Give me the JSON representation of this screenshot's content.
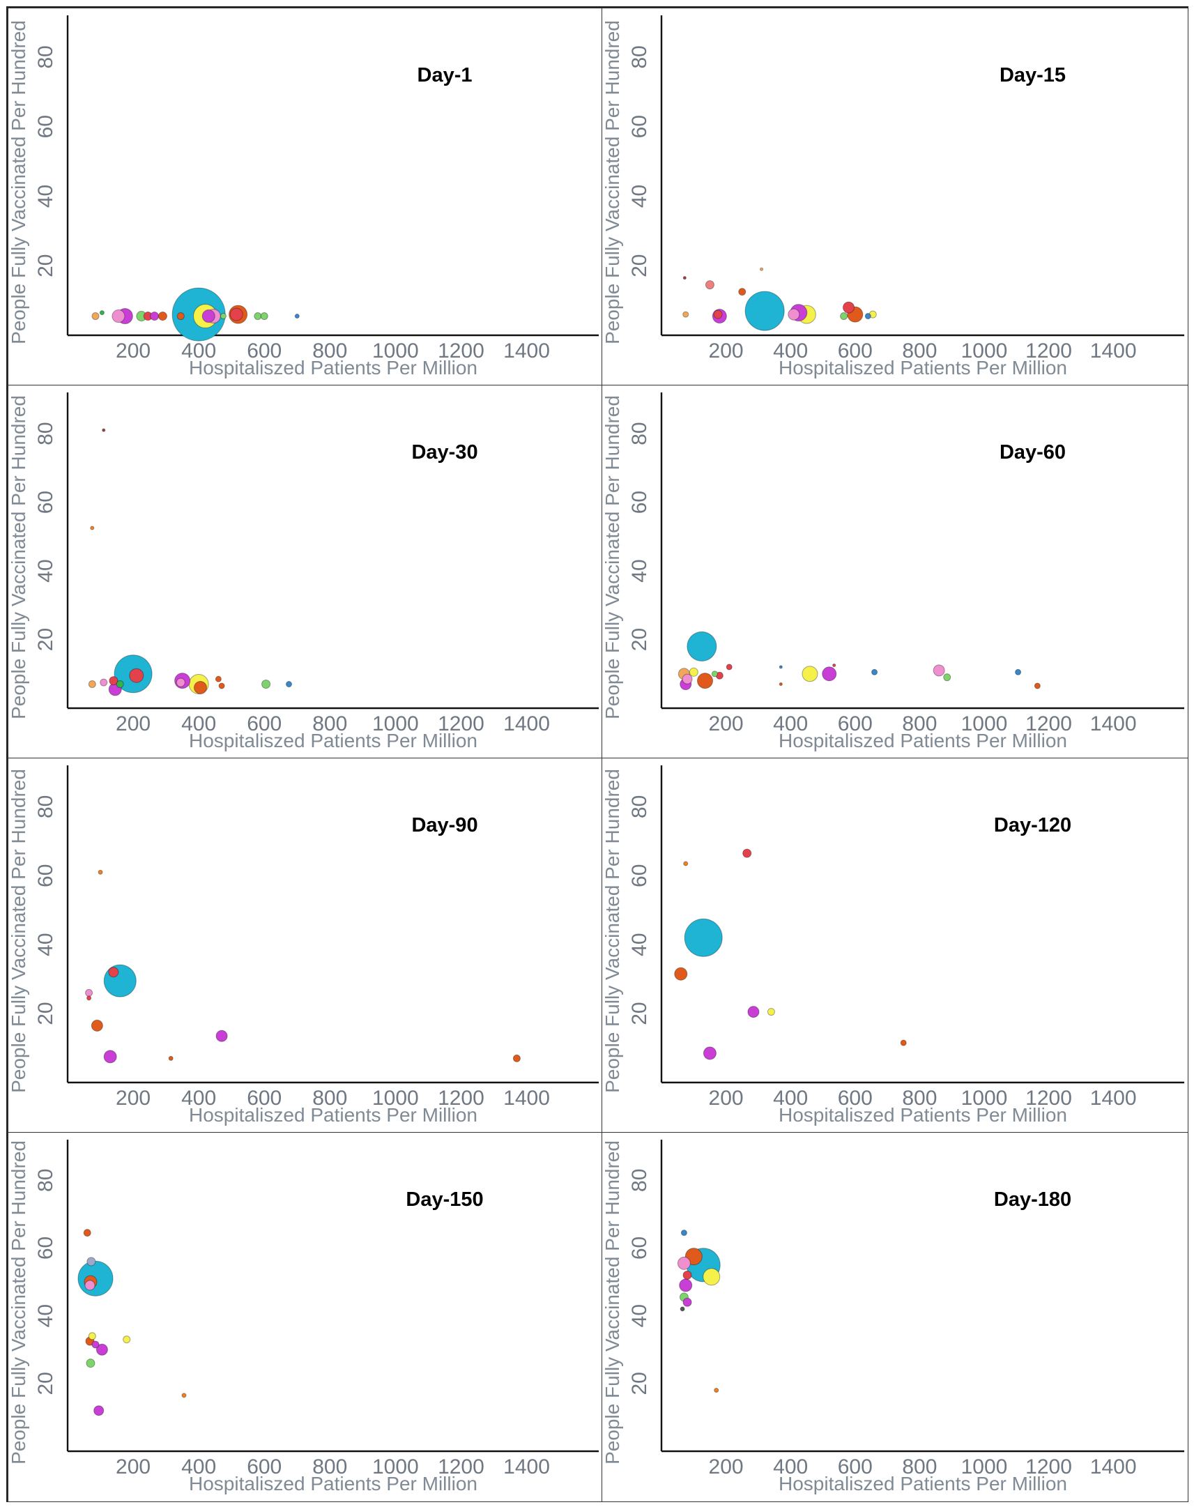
{
  "chart_data": [
    {
      "type": "scatter",
      "title": "Day-1",
      "xlabel": "Hospitaliszed Patients Per Million",
      "ylabel": "People Fully Vaccinated Per Hundred",
      "xticks": [
        "200",
        "400",
        "600",
        "800",
        "1000",
        "1200",
        "1400"
      ],
      "yticks": [
        "20",
        "40",
        "60",
        "80"
      ],
      "xlim": [
        0,
        1620
      ],
      "ylim": [
        0,
        92
      ],
      "points": [
        {
          "x": 85,
          "y": 5.5,
          "r": 5,
          "color": "#f2a65a"
        },
        {
          "x": 105,
          "y": 6.5,
          "r": 3,
          "color": "#32b44a"
        },
        {
          "x": 155,
          "y": 5.5,
          "r": 9,
          "color": "#ef8fd0"
        },
        {
          "x": 175,
          "y": 5.5,
          "r": 11,
          "color": "#c93fd6"
        },
        {
          "x": 225,
          "y": 5.5,
          "r": 7,
          "color": "#7ed36b"
        },
        {
          "x": 245,
          "y": 5.5,
          "r": 6,
          "color": "#e3424a"
        },
        {
          "x": 265,
          "y": 5.5,
          "r": 6,
          "color": "#c93fd6"
        },
        {
          "x": 290,
          "y": 5.5,
          "r": 6,
          "color": "#e05a1c"
        },
        {
          "x": 400,
          "y": 6,
          "r": 38,
          "color": "#1fb3d4"
        },
        {
          "x": 345,
          "y": 5.5,
          "r": 5,
          "color": "#e05a1c"
        },
        {
          "x": 445,
          "y": 5.5,
          "r": 10,
          "color": "#ef8fd0"
        },
        {
          "x": 420,
          "y": 5.5,
          "r": 17,
          "color": "#f5f04a"
        },
        {
          "x": 430,
          "y": 5.5,
          "r": 9,
          "color": "#c93fd6"
        },
        {
          "x": 475,
          "y": 5.5,
          "r": 4,
          "color": "#7ed36b"
        },
        {
          "x": 520,
          "y": 6,
          "r": 13,
          "color": "#e05a1c"
        },
        {
          "x": 515,
          "y": 6,
          "r": 9,
          "color": "#e3424a"
        },
        {
          "x": 580,
          "y": 5.5,
          "r": 5,
          "color": "#7ed36b"
        },
        {
          "x": 600,
          "y": 5.5,
          "r": 5,
          "color": "#7ed36b"
        },
        {
          "x": 700,
          "y": 5.5,
          "r": 3,
          "color": "#3a86c8"
        }
      ]
    },
    {
      "type": "scatter",
      "title": "Day-15",
      "xlabel": "Hospitaliszed Patients Per Million",
      "ylabel": "People Fully Vaccinated Per Hundred",
      "xticks": [
        "200",
        "400",
        "600",
        "800",
        "1000",
        "1200",
        "1400"
      ],
      "yticks": [
        "20",
        "40",
        "60",
        "80"
      ],
      "xlim": [
        0,
        1620
      ],
      "ylim": [
        0,
        92
      ],
      "points": [
        {
          "x": 72,
          "y": 16.5,
          "r": 2,
          "color": "#a04040"
        },
        {
          "x": 75,
          "y": 6,
          "r": 4,
          "color": "#f2a65a"
        },
        {
          "x": 150,
          "y": 14.5,
          "r": 6,
          "color": "#ef7f7f"
        },
        {
          "x": 175,
          "y": 6,
          "r": 6,
          "color": "#e3424a"
        },
        {
          "x": 180,
          "y": 5.5,
          "r": 10,
          "color": "#c93fd6"
        },
        {
          "x": 250,
          "y": 12.5,
          "r": 5,
          "color": "#e05a1c"
        },
        {
          "x": 310,
          "y": 19,
          "r": 2,
          "color": "#f2a65a"
        },
        {
          "x": 320,
          "y": 7,
          "r": 28,
          "color": "#1fb3d4"
        },
        {
          "x": 425,
          "y": 6.5,
          "r": 12,
          "color": "#c93fd6"
        },
        {
          "x": 450,
          "y": 6,
          "r": 13,
          "color": "#f5f04a"
        },
        {
          "x": 410,
          "y": 6,
          "r": 8,
          "color": "#ef8fd0"
        },
        {
          "x": 580,
          "y": 8,
          "r": 8,
          "color": "#e3424a"
        },
        {
          "x": 600,
          "y": 6,
          "r": 11,
          "color": "#e05a1c"
        },
        {
          "x": 565,
          "y": 5.5,
          "r": 5,
          "color": "#7ed36b"
        },
        {
          "x": 655,
          "y": 6,
          "r": 5,
          "color": "#f5f04a"
        },
        {
          "x": 640,
          "y": 5.5,
          "r": 4,
          "color": "#3a86c8"
        }
      ]
    },
    {
      "type": "scatter",
      "title": "Day-30",
      "xlabel": "Hospitaliszed Patients Per Million",
      "ylabel": "People Fully Vaccinated Per Hundred",
      "xticks": [
        "200",
        "400",
        "600",
        "800",
        "1000",
        "1200",
        "1400"
      ],
      "yticks": [
        "20",
        "40",
        "60",
        "80"
      ],
      "xlim": [
        0,
        1620
      ],
      "ylim": [
        0,
        92
      ],
      "points": [
        {
          "x": 110,
          "y": 81,
          "r": 2,
          "color": "#a04040"
        },
        {
          "x": 75,
          "y": 52.5,
          "r": 2.5,
          "color": "#f08020"
        },
        {
          "x": 75,
          "y": 7,
          "r": 5,
          "color": "#f2a65a"
        },
        {
          "x": 110,
          "y": 7.5,
          "r": 5,
          "color": "#ef8fd0"
        },
        {
          "x": 140,
          "y": 8,
          "r": 6,
          "color": "#e3424a"
        },
        {
          "x": 160,
          "y": 7,
          "r": 5,
          "color": "#32b44a"
        },
        {
          "x": 145,
          "y": 5.5,
          "r": 9,
          "color": "#c93fd6"
        },
        {
          "x": 200,
          "y": 10,
          "r": 27,
          "color": "#1fb3d4"
        },
        {
          "x": 210,
          "y": 9.5,
          "r": 10,
          "color": "#e3424a"
        },
        {
          "x": 350,
          "y": 8,
          "r": 11,
          "color": "#c93fd6"
        },
        {
          "x": 400,
          "y": 7,
          "r": 14,
          "color": "#f5f04a"
        },
        {
          "x": 345,
          "y": 7.5,
          "r": 6,
          "color": "#ef8fd0"
        },
        {
          "x": 405,
          "y": 6,
          "r": 9,
          "color": "#e05a1c"
        },
        {
          "x": 460,
          "y": 8.5,
          "r": 4,
          "color": "#e05a1c"
        },
        {
          "x": 470,
          "y": 6.5,
          "r": 4,
          "color": "#e05a1c"
        },
        {
          "x": 605,
          "y": 7,
          "r": 6,
          "color": "#7ed36b"
        },
        {
          "x": 675,
          "y": 7,
          "r": 4,
          "color": "#3a86c8"
        }
      ]
    },
    {
      "type": "scatter",
      "title": "Day-60",
      "xlabel": "Hospitaliszed Patients Per Million",
      "ylabel": "People Fully Vaccinated Per Hundred",
      "xticks": [
        "200",
        "400",
        "600",
        "800",
        "1000",
        "1200",
        "1400"
      ],
      "yticks": [
        "20",
        "40",
        "60",
        "80"
      ],
      "xlim": [
        0,
        1620
      ],
      "ylim": [
        0,
        92
      ],
      "points": [
        {
          "x": 125,
          "y": 18,
          "r": 21,
          "color": "#1fb3d4"
        },
        {
          "x": 70,
          "y": 10,
          "r": 8,
          "color": "#f2a65a"
        },
        {
          "x": 80,
          "y": 8.5,
          "r": 7,
          "color": "#ef8fd0"
        },
        {
          "x": 100,
          "y": 10.5,
          "r": 6,
          "color": "#f5f04a"
        },
        {
          "x": 75,
          "y": 7,
          "r": 8,
          "color": "#c93fd6"
        },
        {
          "x": 135,
          "y": 8,
          "r": 11,
          "color": "#e05a1c"
        },
        {
          "x": 180,
          "y": 9.5,
          "r": 5,
          "color": "#e3424a"
        },
        {
          "x": 210,
          "y": 12,
          "r": 4,
          "color": "#e3424a"
        },
        {
          "x": 165,
          "y": 10,
          "r": 4,
          "color": "#7ed36b"
        },
        {
          "x": 370,
          "y": 12,
          "r": 2,
          "color": "#3a86c8"
        },
        {
          "x": 370,
          "y": 7,
          "r": 2,
          "color": "#e05a1c"
        },
        {
          "x": 460,
          "y": 10,
          "r": 11,
          "color": "#f5f04a"
        },
        {
          "x": 520,
          "y": 10,
          "r": 10,
          "color": "#c93fd6"
        },
        {
          "x": 535,
          "y": 12.5,
          "r": 2,
          "color": "#e3424a"
        },
        {
          "x": 660,
          "y": 10.5,
          "r": 4,
          "color": "#3a86c8"
        },
        {
          "x": 860,
          "y": 11,
          "r": 8,
          "color": "#ef8fd0"
        },
        {
          "x": 885,
          "y": 9,
          "r": 5,
          "color": "#7ed36b"
        },
        {
          "x": 1105,
          "y": 10.5,
          "r": 4,
          "color": "#3a86c8"
        },
        {
          "x": 1165,
          "y": 6.5,
          "r": 4,
          "color": "#e05a1c"
        }
      ]
    },
    {
      "type": "scatter",
      "title": "Day-90",
      "xlabel": "Hospitaliszed Patients Per Million",
      "ylabel": "People Fully Vaccinated Per Hundred",
      "xticks": [
        "200",
        "400",
        "600",
        "800",
        "1000",
        "1200",
        "1400"
      ],
      "yticks": [
        "20",
        "40",
        "60",
        "80"
      ],
      "xlim": [
        0,
        1620
      ],
      "ylim": [
        0,
        92
      ],
      "points": [
        {
          "x": 100,
          "y": 61,
          "r": 3,
          "color": "#f08020"
        },
        {
          "x": 140,
          "y": 32,
          "r": 7,
          "color": "#e3424a"
        },
        {
          "x": 160,
          "y": 29.5,
          "r": 23,
          "color": "#1fb3d4"
        },
        {
          "x": 65,
          "y": 26,
          "r": 5,
          "color": "#ef8fd0"
        },
        {
          "x": 65,
          "y": 24.5,
          "r": 3,
          "color": "#e3424a"
        },
        {
          "x": 90,
          "y": 16.5,
          "r": 8,
          "color": "#e05a1c"
        },
        {
          "x": 130,
          "y": 7.5,
          "r": 9,
          "color": "#c93fd6"
        },
        {
          "x": 315,
          "y": 7,
          "r": 3,
          "color": "#e05a1c"
        },
        {
          "x": 470,
          "y": 13.5,
          "r": 8,
          "color": "#c93fd6"
        },
        {
          "x": 1370,
          "y": 7,
          "r": 5,
          "color": "#e05a1c"
        }
      ]
    },
    {
      "type": "scatter",
      "title": "Day-120",
      "xlabel": "Hospitaliszed Patients Per Million",
      "ylabel": "People Fully Vaccinated Per Hundred",
      "xticks": [
        "200",
        "400",
        "600",
        "800",
        "1000",
        "1200",
        "1400"
      ],
      "yticks": [
        "20",
        "40",
        "60",
        "80"
      ],
      "xlim": [
        0,
        1620
      ],
      "ylim": [
        0,
        92
      ],
      "points": [
        {
          "x": 75,
          "y": 63.5,
          "r": 3,
          "color": "#f08020"
        },
        {
          "x": 265,
          "y": 66.5,
          "r": 6,
          "color": "#e3424a"
        },
        {
          "x": 130,
          "y": 42,
          "r": 27,
          "color": "#1fb3d4"
        },
        {
          "x": 60,
          "y": 31.5,
          "r": 9,
          "color": "#e05a1c"
        },
        {
          "x": 285,
          "y": 20.5,
          "r": 8,
          "color": "#c93fd6"
        },
        {
          "x": 340,
          "y": 20.5,
          "r": 5,
          "color": "#f5f04a"
        },
        {
          "x": 150,
          "y": 8.5,
          "r": 9,
          "color": "#c93fd6"
        },
        {
          "x": 750,
          "y": 11.5,
          "r": 4,
          "color": "#e05a1c"
        }
      ]
    },
    {
      "type": "scatter",
      "title": "Day-150",
      "xlabel": "Hospitaliszed Patients Per Million",
      "ylabel": "People Fully Vaccinated Per Hundred",
      "xticks": [
        "200",
        "400",
        "600",
        "800",
        "1000",
        "1200",
        "1400"
      ],
      "yticks": [
        "20",
        "40",
        "60",
        "80"
      ],
      "xlim": [
        0,
        1620
      ],
      "ylim": [
        0,
        92
      ],
      "points": [
        {
          "x": 60,
          "y": 64.5,
          "r": 5,
          "color": "#e05a1c"
        },
        {
          "x": 72,
          "y": 56,
          "r": 6,
          "color": "#9fa8c8"
        },
        {
          "x": 85,
          "y": 51,
          "r": 25,
          "color": "#1fb3d4"
        },
        {
          "x": 70,
          "y": 50,
          "r": 9,
          "color": "#e05a1c"
        },
        {
          "x": 68,
          "y": 49,
          "r": 7,
          "color": "#ef8fd0"
        },
        {
          "x": 75,
          "y": 34,
          "r": 5,
          "color": "#f5f04a"
        },
        {
          "x": 68,
          "y": 32.5,
          "r": 6,
          "color": "#e05a1c"
        },
        {
          "x": 85,
          "y": 31.5,
          "r": 5,
          "color": "#c93fd6"
        },
        {
          "x": 105,
          "y": 30,
          "r": 8,
          "color": "#c93fd6"
        },
        {
          "x": 70,
          "y": 26,
          "r": 6,
          "color": "#7ed36b"
        },
        {
          "x": 180,
          "y": 33,
          "r": 5,
          "color": "#f5f04a"
        },
        {
          "x": 95,
          "y": 12,
          "r": 7,
          "color": "#c93fd6"
        },
        {
          "x": 355,
          "y": 16.5,
          "r": 3,
          "color": "#f08020"
        }
      ]
    },
    {
      "type": "scatter",
      "title": "Day-180",
      "xlabel": "Hospitaliszed Patients Per Million",
      "ylabel": "People Fully Vaccinated Per Hundred",
      "xticks": [
        "200",
        "400",
        "600",
        "800",
        "1000",
        "1200",
        "1400"
      ],
      "yticks": [
        "20",
        "40",
        "60",
        "80"
      ],
      "xlim": [
        0,
        1620
      ],
      "ylim": [
        0,
        92
      ],
      "points": [
        {
          "x": 70,
          "y": 64.5,
          "r": 4,
          "color": "#3a86c8"
        },
        {
          "x": 130,
          "y": 55,
          "r": 24,
          "color": "#1fb3d4"
        },
        {
          "x": 100,
          "y": 57.5,
          "r": 12,
          "color": "#e05a1c"
        },
        {
          "x": 70,
          "y": 55.5,
          "r": 9,
          "color": "#ef8fd0"
        },
        {
          "x": 155,
          "y": 51.5,
          "r": 12,
          "color": "#f5f04a"
        },
        {
          "x": 80,
          "y": 52,
          "r": 6,
          "color": "#e3424a"
        },
        {
          "x": 75,
          "y": 49,
          "r": 9,
          "color": "#c93fd6"
        },
        {
          "x": 70,
          "y": 45.5,
          "r": 6,
          "color": "#7ed36b"
        },
        {
          "x": 80,
          "y": 44,
          "r": 6,
          "color": "#c93fd6"
        },
        {
          "x": 65,
          "y": 42,
          "r": 3,
          "color": "#555555"
        },
        {
          "x": 170,
          "y": 18,
          "r": 3,
          "color": "#f08020"
        }
      ]
    }
  ]
}
